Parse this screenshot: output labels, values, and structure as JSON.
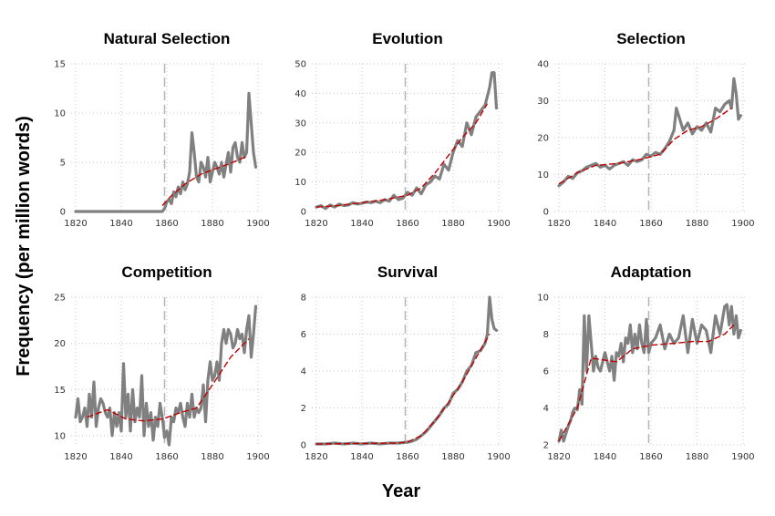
{
  "figure": {
    "xlabel": "Year",
    "ylabel": "Frequency (per million words)"
  },
  "colors": {
    "series": "#808080",
    "trend": "#c00000",
    "marker": "#b4b4b4",
    "grid": "#c8c8c8"
  },
  "chart_data": [
    {
      "type": "line",
      "title": "Natural Selection",
      "xlim": [
        1818,
        1902
      ],
      "ylim": [
        0,
        15
      ],
      "xticks": [
        1820,
        1840,
        1860,
        1880,
        1900
      ],
      "yticks": [
        0,
        5,
        10,
        15
      ],
      "marker_year": 1859,
      "x": [
        1820,
        1822,
        1824,
        1826,
        1828,
        1830,
        1832,
        1834,
        1836,
        1838,
        1840,
        1842,
        1844,
        1846,
        1848,
        1850,
        1852,
        1854,
        1856,
        1858,
        1859,
        1860,
        1861,
        1862,
        1863,
        1864,
        1865,
        1866,
        1867,
        1868,
        1869,
        1870,
        1871,
        1872,
        1873,
        1874,
        1875,
        1876,
        1877,
        1878,
        1879,
        1880,
        1881,
        1882,
        1883,
        1884,
        1885,
        1886,
        1887,
        1888,
        1889,
        1890,
        1891,
        1892,
        1893,
        1894,
        1895,
        1896,
        1897,
        1898,
        1899
      ],
      "values": [
        0,
        0,
        0,
        0,
        0,
        0,
        0,
        0,
        0,
        0,
        0,
        0,
        0,
        0,
        0,
        0,
        0,
        0,
        0,
        0,
        0.3,
        1.0,
        1.2,
        0.8,
        2.0,
        1.5,
        2.5,
        1.8,
        3.0,
        2.2,
        2.8,
        4.0,
        8.0,
        6.0,
        3.5,
        3.0,
        5.0,
        4.5,
        3.5,
        5.5,
        3.0,
        4.0,
        5.0,
        4.5,
        3.8,
        5.0,
        3.5,
        4.8,
        6.0,
        4.0,
        6.5,
        7.0,
        5.5,
        5.0,
        7.0,
        5.5,
        6.0,
        12.0,
        9.0,
        6.0,
        4.5
      ],
      "trend": {
        "x": [
          1858,
          1862,
          1868,
          1875,
          1882,
          1888,
          1895
        ],
        "values": [
          0.6,
          1.6,
          2.8,
          3.8,
          4.4,
          4.9,
          5.6
        ]
      }
    },
    {
      "type": "line",
      "title": "Evolution",
      "xlim": [
        1818,
        1902
      ],
      "ylim": [
        0,
        50
      ],
      "xticks": [
        1820,
        1840,
        1860,
        1880,
        1900
      ],
      "yticks": [
        0,
        10,
        20,
        30,
        40,
        50
      ],
      "marker_year": 1859,
      "x": [
        1820,
        1822,
        1824,
        1826,
        1828,
        1830,
        1832,
        1834,
        1836,
        1838,
        1840,
        1842,
        1844,
        1846,
        1848,
        1850,
        1852,
        1854,
        1856,
        1858,
        1860,
        1862,
        1864,
        1866,
        1868,
        1870,
        1872,
        1874,
        1876,
        1878,
        1880,
        1882,
        1884,
        1886,
        1888,
        1890,
        1892,
        1894,
        1896,
        1897,
        1898,
        1899
      ],
      "values": [
        1.5,
        2.0,
        1.0,
        2.2,
        1.5,
        2.5,
        2.0,
        2.2,
        3.0,
        2.5,
        2.8,
        3.2,
        3.0,
        3.5,
        3.0,
        4.0,
        3.5,
        5.5,
        4.0,
        4.5,
        6.5,
        5.5,
        8.0,
        6.0,
        9.0,
        10.0,
        12.0,
        11.0,
        16.0,
        14.0,
        20.0,
        24.0,
        22.0,
        30.0,
        26.0,
        32.0,
        34.0,
        36.0,
        42.0,
        47.0,
        47.0,
        35.0
      ],
      "trend": {
        "x": [
          1820,
          1830,
          1840,
          1850,
          1860,
          1866,
          1872,
          1878,
          1884,
          1890,
          1895
        ],
        "values": [
          1.5,
          2.0,
          3.0,
          4.0,
          5.5,
          8.0,
          13.0,
          19.0,
          25.0,
          30.0,
          36.5
        ]
      }
    },
    {
      "type": "line",
      "title": "Selection",
      "xlim": [
        1818,
        1902
      ],
      "ylim": [
        0,
        40
      ],
      "xticks": [
        1820,
        1840,
        1860,
        1880,
        1900
      ],
      "yticks": [
        0,
        10,
        20,
        30,
        40
      ],
      "marker_year": 1859,
      "x": [
        1820,
        1822,
        1824,
        1826,
        1828,
        1830,
        1832,
        1834,
        1836,
        1838,
        1840,
        1842,
        1844,
        1846,
        1848,
        1850,
        1852,
        1854,
        1856,
        1858,
        1860,
        1862,
        1864,
        1866,
        1868,
        1870,
        1871,
        1872,
        1874,
        1876,
        1878,
        1880,
        1882,
        1884,
        1886,
        1888,
        1890,
        1892,
        1894,
        1895,
        1896,
        1897,
        1898,
        1899
      ],
      "values": [
        7.0,
        8.0,
        9.5,
        9.0,
        10.5,
        11.0,
        12.0,
        12.5,
        13.0,
        12.0,
        12.5,
        11.5,
        12.5,
        13.0,
        13.5,
        12.5,
        14.0,
        13.5,
        14.0,
        15.5,
        15.0,
        16.0,
        15.5,
        17.0,
        19.0,
        22.0,
        28.0,
        26.0,
        22.0,
        24.0,
        21.0,
        23.0,
        22.0,
        24.0,
        21.5,
        28.0,
        27.0,
        29.0,
        30.0,
        28.0,
        36.0,
        32.0,
        25.0,
        26.0
      ],
      "trend": {
        "x": [
          1820,
          1828,
          1836,
          1846,
          1856,
          1864,
          1870,
          1876,
          1882,
          1888,
          1895
        ],
        "values": [
          7.5,
          10.5,
          12.5,
          13.0,
          14.2,
          15.5,
          19.5,
          22.0,
          23.0,
          25.0,
          28.0
        ]
      }
    },
    {
      "type": "line",
      "title": "Competition",
      "xlim": [
        1818,
        1902
      ],
      "ylim": [
        9,
        25
      ],
      "xticks": [
        1820,
        1840,
        1860,
        1880,
        1900
      ],
      "yticks": [
        10,
        15,
        20,
        25
      ],
      "marker_year": 1859,
      "x": [
        1820,
        1821,
        1822,
        1823,
        1824,
        1825,
        1826,
        1827,
        1828,
        1829,
        1830,
        1831,
        1832,
        1833,
        1834,
        1835,
        1836,
        1837,
        1838,
        1839,
        1840,
        1841,
        1842,
        1843,
        1844,
        1845,
        1846,
        1847,
        1848,
        1849,
        1850,
        1851,
        1852,
        1853,
        1854,
        1855,
        1856,
        1857,
        1858,
        1859,
        1860,
        1861,
        1862,
        1863,
        1864,
        1865,
        1866,
        1867,
        1868,
        1869,
        1870,
        1871,
        1872,
        1873,
        1874,
        1875,
        1876,
        1877,
        1878,
        1879,
        1880,
        1881,
        1882,
        1883,
        1884,
        1885,
        1886,
        1887,
        1888,
        1889,
        1890,
        1891,
        1892,
        1893,
        1894,
        1895,
        1896,
        1897,
        1898,
        1899
      ],
      "values": [
        12.0,
        14.0,
        11.5,
        12.0,
        13.0,
        11.0,
        14.5,
        12.0,
        15.8,
        11.0,
        13.0,
        14.0,
        13.5,
        12.5,
        12.0,
        13.0,
        10.0,
        12.5,
        11.0,
        12.5,
        10.5,
        17.8,
        12.0,
        14.5,
        10.5,
        15.0,
        11.5,
        13.0,
        12.0,
        16.5,
        10.0,
        13.5,
        11.0,
        12.5,
        9.5,
        12.0,
        11.0,
        13.5,
        12.0,
        9.8,
        10.5,
        9.0,
        12.0,
        11.5,
        13.0,
        12.5,
        13.5,
        12.0,
        11.0,
        13.5,
        12.0,
        14.5,
        12.0,
        13.0,
        12.5,
        13.0,
        15.5,
        11.5,
        16.0,
        18.0,
        16.0,
        16.5,
        18.0,
        16.0,
        20.0,
        21.5,
        20.0,
        21.5,
        21.0,
        19.5,
        20.0,
        21.5,
        20.5,
        21.0,
        19.0,
        21.5,
        23.0,
        18.5,
        21.0,
        24.0
      ],
      "trend": {
        "x": [
          1825,
          1834,
          1842,
          1850,
          1858,
          1866,
          1873,
          1880,
          1888,
          1896
        ],
        "values": [
          12.0,
          12.8,
          11.8,
          11.6,
          11.8,
          12.5,
          13.0,
          15.5,
          18.5,
          20.5
        ]
      }
    },
    {
      "type": "line",
      "title": "Survival",
      "xlim": [
        1818,
        1902
      ],
      "ylim": [
        0,
        8
      ],
      "xticks": [
        1820,
        1840,
        1860,
        1880,
        1900
      ],
      "yticks": [
        0,
        2,
        4,
        6,
        8
      ],
      "marker_year": 1859,
      "x": [
        1820,
        1824,
        1828,
        1832,
        1836,
        1840,
        1844,
        1848,
        1852,
        1856,
        1860,
        1862,
        1864,
        1866,
        1868,
        1870,
        1872,
        1874,
        1876,
        1878,
        1880,
        1882,
        1884,
        1886,
        1888,
        1890,
        1892,
        1894,
        1895,
        1896,
        1897,
        1898,
        1899
      ],
      "values": [
        0.05,
        0.05,
        0.1,
        0.05,
        0.1,
        0.05,
        0.1,
        0.05,
        0.1,
        0.1,
        0.15,
        0.2,
        0.3,
        0.5,
        0.7,
        1.0,
        1.3,
        1.6,
        2.0,
        2.2,
        2.8,
        3.0,
        3.4,
        4.0,
        4.3,
        5.0,
        5.1,
        5.5,
        6.0,
        8.0,
        6.8,
        6.3,
        6.2
      ],
      "trend": {
        "x": [
          1820,
          1840,
          1855,
          1860,
          1866,
          1872,
          1878,
          1884,
          1890,
          1896
        ],
        "values": [
          0.05,
          0.08,
          0.1,
          0.15,
          0.5,
          1.3,
          2.3,
          3.4,
          4.7,
          6.0
        ]
      }
    },
    {
      "type": "line",
      "title": "Adaptation",
      "xlim": [
        1818,
        1902
      ],
      "ylim": [
        2,
        10
      ],
      "xticks": [
        1820,
        1840,
        1860,
        1880,
        1900
      ],
      "yticks": [
        2,
        4,
        6,
        8,
        10
      ],
      "marker_year": 1859,
      "x": [
        1820,
        1821,
        1822,
        1823,
        1824,
        1825,
        1826,
        1827,
        1828,
        1829,
        1830,
        1831,
        1832,
        1833,
        1834,
        1835,
        1836,
        1837,
        1838,
        1839,
        1840,
        1841,
        1842,
        1843,
        1844,
        1845,
        1846,
        1847,
        1848,
        1849,
        1850,
        1851,
        1852,
        1853,
        1854,
        1855,
        1856,
        1857,
        1858,
        1859,
        1860,
        1862,
        1864,
        1866,
        1868,
        1870,
        1872,
        1874,
        1876,
        1878,
        1880,
        1882,
        1884,
        1886,
        1888,
        1890,
        1892,
        1893,
        1894,
        1895,
        1896,
        1897,
        1898,
        1899
      ],
      "values": [
        2.2,
        2.8,
        2.2,
        2.6,
        3.0,
        3.3,
        3.8,
        4.0,
        3.9,
        5.0,
        4.2,
        9.0,
        6.0,
        9.0,
        7.5,
        6.0,
        6.8,
        6.2,
        6.0,
        6.5,
        7.0,
        6.5,
        6.0,
        6.8,
        5.5,
        7.0,
        6.8,
        7.5,
        6.5,
        7.8,
        7.5,
        8.5,
        7.0,
        8.0,
        7.2,
        8.5,
        7.5,
        7.0,
        8.8,
        7.0,
        7.5,
        7.8,
        8.5,
        7.2,
        8.0,
        7.5,
        7.8,
        9.0,
        7.0,
        8.8,
        7.5,
        8.5,
        8.2,
        7.0,
        9.0,
        8.0,
        9.5,
        9.6,
        8.5,
        9.5,
        8.0,
        9.0,
        7.8,
        8.2
      ],
      "trend": {
        "x": [
          1820,
          1828,
          1834,
          1845,
          1852,
          1860,
          1870,
          1878,
          1885,
          1892,
          1896
        ],
        "values": [
          2.2,
          4.0,
          6.7,
          6.5,
          7.2,
          7.4,
          7.5,
          7.6,
          7.6,
          8.0,
          8.5
        ]
      }
    }
  ]
}
